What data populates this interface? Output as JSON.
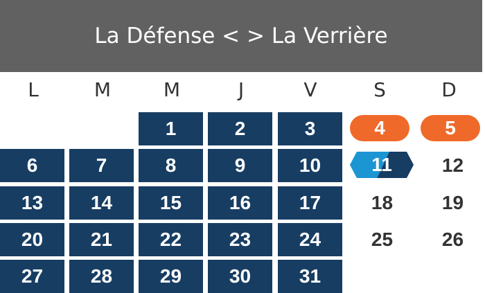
{
  "header": {
    "title": "La Défense < > La Verrière"
  },
  "weekdays": [
    "L",
    "M",
    "M",
    "J",
    "V",
    "S",
    "D"
  ],
  "colors": {
    "header_bg": "#616161",
    "service_day": "#173d63",
    "highlight_orange": "#ef6a2a",
    "highlight_blue": "#1c95d3",
    "no_service_text": "#333333"
  },
  "days": [
    {
      "day": "1",
      "col": 2,
      "week": 0,
      "style": "navy"
    },
    {
      "day": "2",
      "col": 3,
      "week": 0,
      "style": "navy"
    },
    {
      "day": "3",
      "col": 4,
      "week": 0,
      "style": "navy"
    },
    {
      "day": "4",
      "col": 5,
      "week": 0,
      "style": "orange"
    },
    {
      "day": "5",
      "col": 6,
      "week": 0,
      "style": "orange"
    },
    {
      "day": "6",
      "col": 0,
      "week": 1,
      "style": "navy"
    },
    {
      "day": "7",
      "col": 1,
      "week": 1,
      "style": "navy"
    },
    {
      "day": "8",
      "col": 2,
      "week": 1,
      "style": "navy"
    },
    {
      "day": "9",
      "col": 3,
      "week": 1,
      "style": "navy"
    },
    {
      "day": "10",
      "col": 4,
      "week": 1,
      "style": "navy"
    },
    {
      "day": "11",
      "col": 5,
      "week": 1,
      "style": "blue"
    },
    {
      "day": "12",
      "col": 6,
      "week": 1,
      "style": "plain"
    },
    {
      "day": "13",
      "col": 0,
      "week": 2,
      "style": "navy"
    },
    {
      "day": "14",
      "col": 1,
      "week": 2,
      "style": "navy"
    },
    {
      "day": "15",
      "col": 2,
      "week": 2,
      "style": "navy"
    },
    {
      "day": "16",
      "col": 3,
      "week": 2,
      "style": "navy"
    },
    {
      "day": "17",
      "col": 4,
      "week": 2,
      "style": "navy"
    },
    {
      "day": "18",
      "col": 5,
      "week": 2,
      "style": "plain"
    },
    {
      "day": "19",
      "col": 6,
      "week": 2,
      "style": "plain"
    },
    {
      "day": "20",
      "col": 0,
      "week": 3,
      "style": "navy"
    },
    {
      "day": "21",
      "col": 1,
      "week": 3,
      "style": "navy"
    },
    {
      "day": "22",
      "col": 2,
      "week": 3,
      "style": "navy"
    },
    {
      "day": "23",
      "col": 3,
      "week": 3,
      "style": "navy"
    },
    {
      "day": "24",
      "col": 4,
      "week": 3,
      "style": "navy"
    },
    {
      "day": "25",
      "col": 5,
      "week": 3,
      "style": "plain"
    },
    {
      "day": "26",
      "col": 6,
      "week": 3,
      "style": "plain"
    },
    {
      "day": "27",
      "col": 0,
      "week": 4,
      "style": "navy"
    },
    {
      "day": "28",
      "col": 1,
      "week": 4,
      "style": "navy"
    },
    {
      "day": "29",
      "col": 2,
      "week": 4,
      "style": "navy"
    },
    {
      "day": "30",
      "col": 3,
      "week": 4,
      "style": "navy"
    },
    {
      "day": "31",
      "col": 4,
      "week": 4,
      "style": "navy"
    }
  ]
}
